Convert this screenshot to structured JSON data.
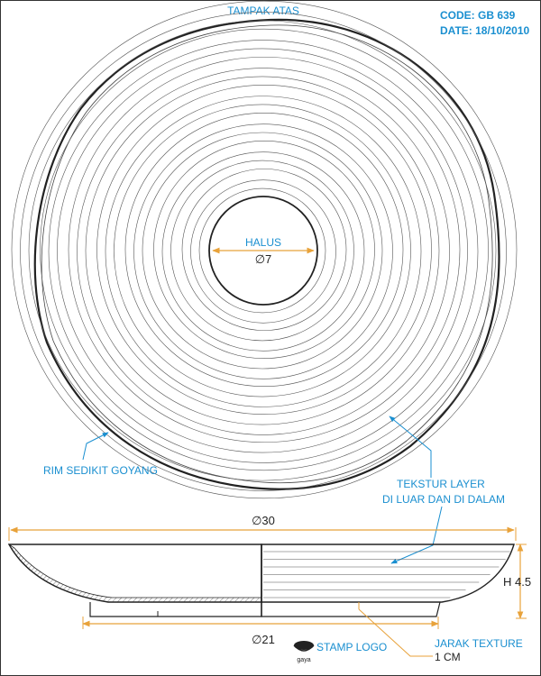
{
  "header": {
    "view_label": "TAMPAK ATAS",
    "code": "CODE: GB 639",
    "date": "DATE: 18/10/2010"
  },
  "top_view": {
    "center_label": "HALUS",
    "center_diameter": "∅7",
    "rim_note": "RIM SEDIKIT GOYANG",
    "texture_note_line1": "TEKSTUR LAYER",
    "texture_note_line2": "DI LUAR DAN DI DALAM"
  },
  "side_view": {
    "outer_diameter": "∅30",
    "height": "H 4.5",
    "base_diameter": "∅21",
    "stamp_label": "STAMP LOGO",
    "stamp_brand": "gaya",
    "spacing_label": "JARAK TEXTURE",
    "spacing_value": "1 CM"
  },
  "colors": {
    "annotation": "#1a8fd0",
    "dimension": "#e8a23a",
    "line": "#222222"
  }
}
